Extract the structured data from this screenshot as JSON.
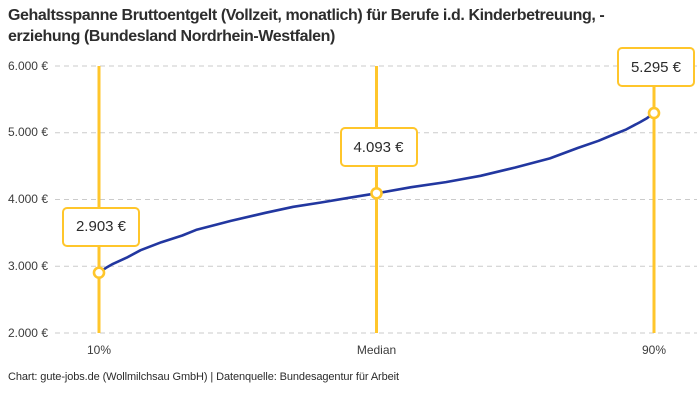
{
  "header": {
    "title_lines": [
      "Gehaltsspanne Bruttoentgelt (Vollzeit, monatlich) für Berufe i.d. Kinderbetreuung, -",
      "erziehung (Bundesland Nordrhein-Westfalen)"
    ]
  },
  "footer": {
    "credit": "Chart: gute-jobs.de (Wollmilchsau GmbH) | Datenquelle: Bundesagentur für Arbeit"
  },
  "chart_data": {
    "type": "line",
    "title": "Gehaltsspanne Bruttoentgelt (Vollzeit, monatlich) für Berufe i.d. Kinderbetreuung, -erziehung (Bundesland Nordrhein-Westfalen)",
    "unit": "€",
    "y_axis": {
      "min": 2000,
      "max": 6000,
      "tick_step": 1000,
      "tick_labels": [
        "2.000 €",
        "3.000 €",
        "4.000 €",
        "5.000 €",
        "6.000 €"
      ],
      "grid": "horizontal-dashed"
    },
    "x_axis": {
      "ticks": [
        {
          "percentile": 10,
          "label": "10%"
        },
        {
          "percentile": 50,
          "label": "Median"
        },
        {
          "percentile": 90,
          "label": "90%"
        }
      ]
    },
    "markers": [
      {
        "percentile": 10,
        "value": 2903,
        "label": "2.903 €"
      },
      {
        "percentile": 50,
        "value": 4093,
        "label": "4.093 €"
      },
      {
        "percentile": 90,
        "value": 5295,
        "label": "5.295 €"
      }
    ],
    "curve_points": [
      [
        10,
        2903
      ],
      [
        11,
        2975
      ],
      [
        12,
        3035
      ],
      [
        14,
        3130
      ],
      [
        16,
        3240
      ],
      [
        19,
        3360
      ],
      [
        22,
        3460
      ],
      [
        24,
        3545
      ],
      [
        27,
        3625
      ],
      [
        29,
        3680
      ],
      [
        34,
        3800
      ],
      [
        38,
        3890
      ],
      [
        42,
        3955
      ],
      [
        46,
        4025
      ],
      [
        50,
        4093
      ],
      [
        55,
        4185
      ],
      [
        60,
        4260
      ],
      [
        65,
        4355
      ],
      [
        70,
        4480
      ],
      [
        75,
        4615
      ],
      [
        79,
        4772
      ],
      [
        82,
        4880
      ],
      [
        84,
        4967
      ],
      [
        86,
        5050
      ],
      [
        88,
        5160
      ],
      [
        89,
        5220
      ],
      [
        90,
        5295
      ]
    ],
    "colors": {
      "accent_yellow": "#FFC62B",
      "curve_blue": "#2237A0",
      "grid_gray": "#CBCBCB"
    },
    "legend": "none"
  }
}
